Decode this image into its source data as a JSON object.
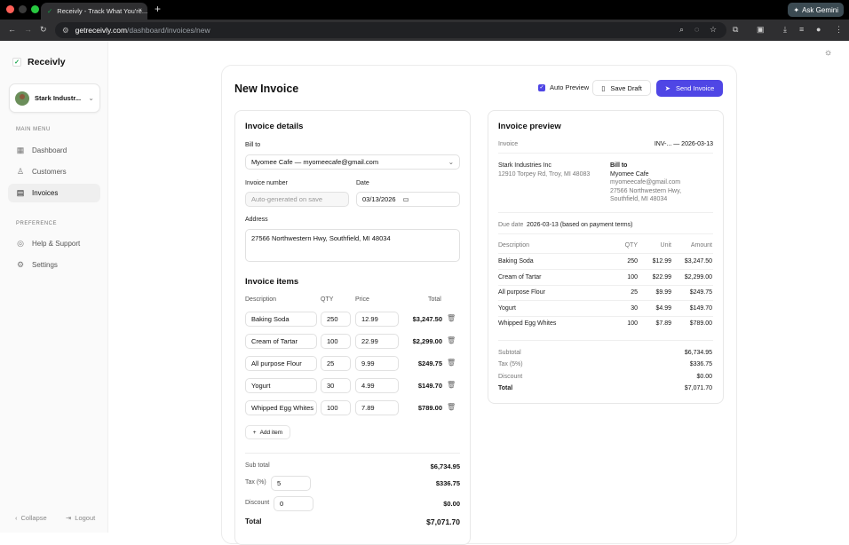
{
  "browser": {
    "tab_title": "Receivly - Track What You're...",
    "tab_close": "×",
    "new_tab": "+",
    "gemini_label": "Ask Gemini",
    "url_host": "getreceivly.com",
    "url_path": "/dashboard/invoices/new"
  },
  "sidebar": {
    "brand": "Receivly",
    "company": "Stark Industr...",
    "main_menu_label": "MAIN MENU",
    "preference_label": "PREFERENCE",
    "items": [
      {
        "label": "Dashboard",
        "icon": "grid-icon"
      },
      {
        "label": "Customers",
        "icon": "user-icon"
      },
      {
        "label": "Invoices",
        "icon": "document-icon",
        "active": true
      }
    ],
    "pref_items": [
      {
        "label": "Help & Support",
        "icon": "help-icon"
      },
      {
        "label": "Settings",
        "icon": "gear-icon"
      }
    ],
    "collapse": "Collapse",
    "logout": "Logout"
  },
  "header": {
    "title": "New Invoice",
    "auto_preview": "Auto Preview",
    "save_draft": "Save Draft",
    "send_invoice": "Send Invoice"
  },
  "details": {
    "title": "Invoice details",
    "bill_to_label": "Bill to",
    "bill_to_value": "Myomee Cafe — myomeecafe@gmail.com",
    "invoice_number_label": "Invoice number",
    "invoice_number_placeholder": "Auto-generated on save",
    "date_label": "Date",
    "date_value": "03/13/2026",
    "address_label": "Address",
    "address_value": "27566 Northwestern Hwy, Southfield, MI 48034"
  },
  "items": {
    "title": "Invoice items",
    "headers": {
      "description": "Description",
      "qty": "QTY",
      "price": "Price",
      "total": "Total"
    },
    "rows": [
      {
        "description": "Baking Soda",
        "qty": "250",
        "price": "12.99",
        "total": "$3,247.50"
      },
      {
        "description": "Cream of Tartar",
        "qty": "100",
        "price": "22.99",
        "total": "$2,299.00"
      },
      {
        "description": "All purpose Flour",
        "qty": "25",
        "price": "9.99",
        "total": "$249.75"
      },
      {
        "description": "Yogurt",
        "qty": "30",
        "price": "4.99",
        "total": "$149.70"
      },
      {
        "description": "Whipped Egg Whites",
        "qty": "100",
        "price": "7.89",
        "total": "$789.00"
      }
    ],
    "add_item": "Add item"
  },
  "summary": {
    "subtotal_label": "Sub total",
    "subtotal": "$6,734.95",
    "tax_label": "Tax (%)",
    "tax_value": "5",
    "tax_amount": "$336.75",
    "discount_label": "Discount",
    "discount_value": "0",
    "discount_amount": "$0.00",
    "total_label": "Total",
    "total": "$7,071.70"
  },
  "preview": {
    "title": "Invoice preview",
    "invoice_label": "Invoice",
    "invoice_value": "INV-... — 2026-03-13",
    "from_name": "Stark Industries Inc",
    "from_address": "12910 Torpey Rd, Troy, MI 48083",
    "bill_to_label": "Bill to",
    "bill_to_name": "Myomee Cafe",
    "bill_to_email": "myomeecafe@gmail.com",
    "bill_to_addr1": "27566 Northwestern Hwy,",
    "bill_to_addr2": "Southfield, MI 48034",
    "due_label": "Due date",
    "due_value": "2026-03-13 (based on payment terms)",
    "headers": {
      "description": "Description",
      "qty": "QTY",
      "unit": "Unit",
      "amount": "Amount"
    },
    "rows": [
      {
        "description": "Baking Soda",
        "qty": "250",
        "unit": "$12.99",
        "amount": "$3,247.50"
      },
      {
        "description": "Cream of Tartar",
        "qty": "100",
        "unit": "$22.99",
        "amount": "$2,299.00"
      },
      {
        "description": "All purpose Flour",
        "qty": "25",
        "unit": "$9.99",
        "amount": "$249.75"
      },
      {
        "description": "Yogurt",
        "qty": "30",
        "unit": "$4.99",
        "amount": "$149.70"
      },
      {
        "description": "Whipped Egg Whites",
        "qty": "100",
        "unit": "$7.89",
        "amount": "$789.00"
      }
    ],
    "subtotal_label": "Subtotal",
    "subtotal": "$6,734.95",
    "tax_label": "Tax (5%)",
    "tax": "$336.75",
    "discount_label": "Discount",
    "discount": "$0.00",
    "total_label": "Total",
    "total": "$7,071.70"
  },
  "colors": {
    "accent": "#4f46e5",
    "brand": "#16a34a"
  }
}
